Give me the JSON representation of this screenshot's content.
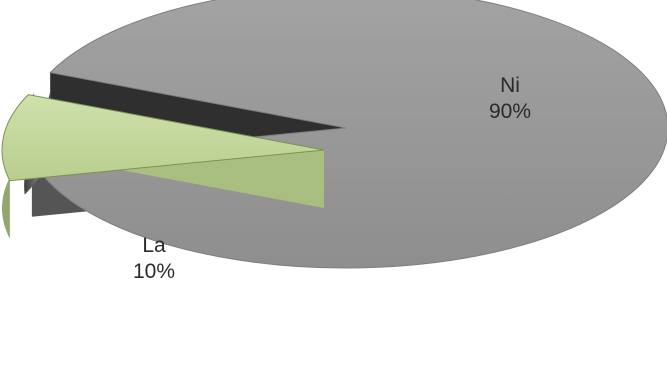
{
  "chart_data": {
    "type": "pie",
    "style": "3d-exploded",
    "title": "",
    "series": [
      {
        "values": [
          90,
          10
        ],
        "categories": [
          "Ni",
          "La"
        ],
        "labels": [
          {
            "category": "Ni",
            "percent": "90%"
          },
          {
            "category": "La",
            "percent": "10%"
          }
        ],
        "colors": [
          "#9a9a9a",
          "#c7d9a1"
        ],
        "side_colors": [
          "#5d5d5d",
          "#8ea16a"
        ]
      }
    ],
    "legend": "none",
    "exploded_slice": "La"
  }
}
